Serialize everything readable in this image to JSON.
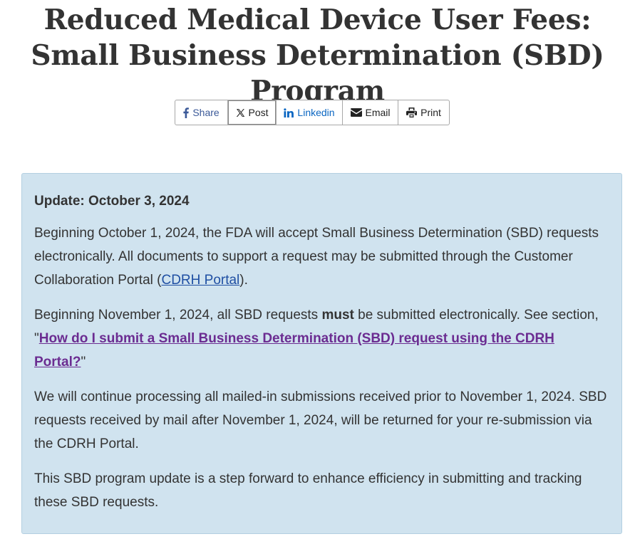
{
  "page": {
    "title": "Reduced Medical Device User Fees: Small Business Determination (SBD) Program"
  },
  "share_bar": {
    "buttons": [
      {
        "label": "Share",
        "icon": "facebook-icon",
        "color": "#3b5998"
      },
      {
        "label": "Post",
        "icon": "x-icon",
        "color": "#222222"
      },
      {
        "label": "Linkedin",
        "icon": "linkedin-icon",
        "color": "#0a66c2"
      },
      {
        "label": "Email",
        "icon": "envelope-icon",
        "color": "#222222"
      },
      {
        "label": "Print",
        "icon": "printer-icon",
        "color": "#222222"
      }
    ]
  },
  "alert": {
    "background_color": "#d0e3ef",
    "heading": "Update: October 3, 2024",
    "para1": {
      "text_before": "Beginning October 1, 2024, the FDA will accept Small Business Determination (SBD) requests electronically. All documents to support a request may be submitted through the Customer Collaboration Portal (",
      "link_text": "CDRH Portal",
      "text_after": ")."
    },
    "para2": {
      "text_before": "Beginning November 1, 2024, all SBD requests ",
      "bold_text": "must",
      "text_middle": " be submitted electronically. See section, \"",
      "link_text": "How do I submit a Small Business Determination (SBD) request using the CDRH Portal?",
      "text_after": "\""
    },
    "para3": "We will continue processing all mailed-in submissions received prior to November 1, 2024. SBD requests received by mail after November 1, 2024, will be returned for your re-submission via the CDRH Portal.",
    "para4": "This SBD program update is a step forward to enhance efficiency in submitting and tracking these SBD requests."
  }
}
